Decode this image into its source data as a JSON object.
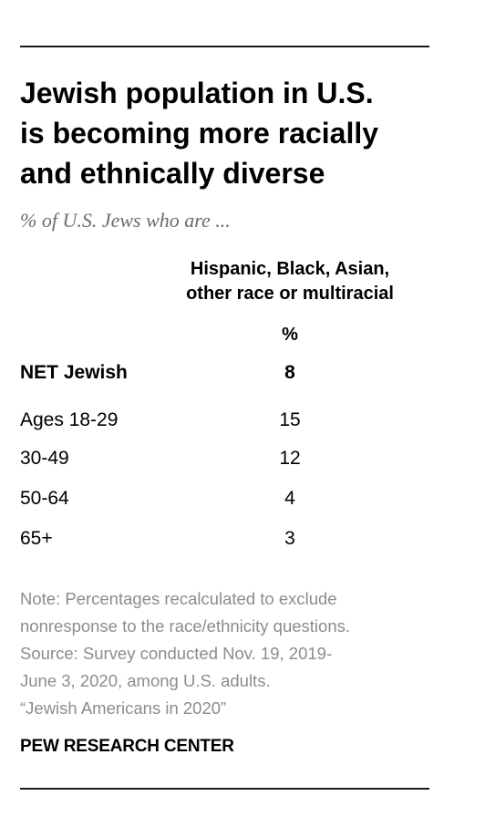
{
  "title_lines": [
    "Jewish population in U.S.",
    "is becoming more racially",
    "and ethnically diverse"
  ],
  "subtitle": "% of U.S. Jews who are ...",
  "column_header_lines": [
    "Hispanic, Black, Asian,",
    "other race or multiracial"
  ],
  "unit_label": "%",
  "chart_data": {
    "type": "table",
    "title": "Jewish population in U.S. is becoming more racially and ethnically diverse",
    "subtitle": "% of U.S. Jews who are ...",
    "columns": [
      "Hispanic, Black, Asian, other race or multiracial"
    ],
    "unit": "%",
    "rows": [
      {
        "label": "NET Jewish",
        "value": "8",
        "bold": true
      },
      {
        "label": "Ages 18-29",
        "value": "15",
        "bold": false
      },
      {
        "label": "30-49",
        "value": "12",
        "bold": false
      },
      {
        "label": "50-64",
        "value": "4",
        "bold": false
      },
      {
        "label": "65+",
        "value": "3",
        "bold": false
      }
    ]
  },
  "notes": [
    "Note: Percentages recalculated to exclude",
    "nonresponse to the race/ethnicity questions.",
    "Source: Survey conducted Nov. 19, 2019-",
    "June 3, 2020, among U.S. adults.",
    "“Jewish Americans in 2020”"
  ],
  "brand": "PEW RESEARCH CENTER"
}
